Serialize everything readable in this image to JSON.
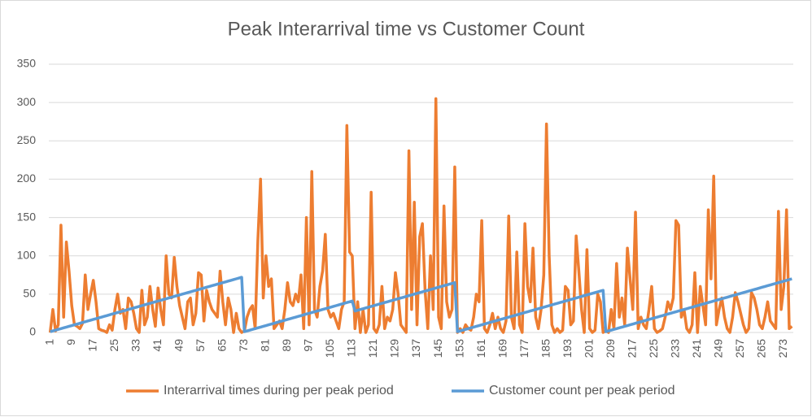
{
  "chart_data": {
    "type": "line",
    "title": "Peak Interarrival time vs Customer Count",
    "categories": [
      "1",
      null,
      null,
      null,
      null,
      null,
      null,
      null,
      "9",
      null,
      null,
      null,
      null,
      null,
      null,
      null,
      "17",
      null,
      null,
      null,
      null,
      null,
      null,
      null,
      "25",
      null,
      null,
      null,
      null,
      null,
      null,
      null,
      "33",
      null,
      null,
      null,
      null,
      null,
      null,
      null,
      "41",
      null,
      null,
      null,
      null,
      null,
      null,
      null,
      "49",
      null,
      null,
      null,
      null,
      null,
      null,
      null,
      "57",
      null,
      null,
      null,
      null,
      null,
      null,
      null,
      "65",
      null,
      null,
      null,
      null,
      null,
      null,
      null,
      "73",
      null,
      null,
      null,
      null,
      null,
      null,
      null,
      "81",
      null,
      null,
      null,
      null,
      null,
      null,
      null,
      "89",
      null,
      null,
      null,
      null,
      null,
      null,
      null,
      "97",
      null,
      null,
      null,
      null,
      null,
      null,
      null,
      "105",
      null,
      null,
      null,
      null,
      null,
      null,
      null,
      "113",
      null,
      null,
      null,
      null,
      null,
      null,
      null,
      "121",
      null,
      null,
      null,
      null,
      null,
      null,
      null,
      "129",
      null,
      null,
      null,
      null,
      null,
      null,
      null,
      "137",
      null,
      null,
      null,
      null,
      null,
      null,
      null,
      "145",
      null,
      null,
      null,
      null,
      null,
      null,
      null,
      "153",
      null,
      null,
      null,
      null,
      null,
      null,
      null,
      "161",
      null,
      null,
      null,
      null,
      null,
      null,
      null,
      "169",
      null,
      null,
      null,
      null,
      null,
      null,
      null,
      "177",
      null,
      null,
      null,
      null,
      null,
      null,
      null,
      "185",
      null,
      null,
      null,
      null,
      null,
      null,
      null,
      "193",
      null,
      null,
      null,
      null,
      null,
      null,
      null,
      "201",
      null,
      null,
      null,
      null,
      null,
      null,
      null,
      "209",
      null,
      null,
      null,
      null,
      null,
      null,
      null,
      "217",
      null,
      null,
      null,
      null,
      null,
      null,
      null,
      "225",
      null,
      null,
      null,
      null,
      null,
      null,
      null,
      "233",
      null,
      null,
      null,
      null,
      null,
      null,
      null,
      "241",
      null,
      null,
      null,
      null,
      null,
      null,
      null,
      "249",
      null,
      null,
      null,
      null,
      null,
      null,
      null,
      "257",
      null,
      null,
      null,
      null,
      null,
      null,
      null,
      "265",
      null,
      null,
      null,
      null,
      null,
      null,
      null,
      "273",
      null,
      null,
      null
    ],
    "series": [
      {
        "name": "Interarrival times during per peak period",
        "color": "#ed7d31",
        "values": [
          0,
          30,
          2,
          10,
          140,
          20,
          118,
          80,
          35,
          10,
          8,
          5,
          12,
          75,
          30,
          50,
          68,
          40,
          5,
          3,
          2,
          0,
          10,
          3,
          30,
          50,
          25,
          30,
          5,
          45,
          40,
          25,
          5,
          0,
          55,
          10,
          20,
          60,
          30,
          8,
          58,
          30,
          10,
          100,
          50,
          45,
          98,
          60,
          35,
          20,
          5,
          40,
          45,
          10,
          25,
          78,
          75,
          15,
          55,
          40,
          30,
          25,
          20,
          80,
          40,
          10,
          45,
          30,
          0,
          25,
          5,
          0,
          2,
          20,
          30,
          35,
          5,
          120,
          200,
          45,
          100,
          60,
          70,
          5,
          10,
          15,
          5,
          30,
          65,
          40,
          35,
          50,
          40,
          75,
          5,
          150,
          10,
          210,
          30,
          20,
          60,
          80,
          128,
          30,
          20,
          25,
          15,
          5,
          30,
          40,
          270,
          105,
          100,
          5,
          40,
          0,
          30,
          0,
          10,
          183,
          5,
          0,
          10,
          60,
          5,
          20,
          15,
          30,
          78,
          50,
          10,
          5,
          0,
          237,
          30,
          170,
          10,
          125,
          142,
          55,
          5,
          100,
          30,
          305,
          20,
          5,
          165,
          40,
          20,
          30,
          216,
          0,
          5,
          0,
          10,
          5,
          3,
          20,
          50,
          40,
          146,
          5,
          0,
          10,
          25,
          5,
          20,
          5,
          0,
          15,
          152,
          20,
          5,
          105,
          10,
          0,
          142,
          60,
          40,
          110,
          20,
          5,
          30,
          75,
          272,
          100,
          10,
          0,
          5,
          0,
          3,
          60,
          55,
          10,
          15,
          126,
          80,
          30,
          0,
          108,
          5,
          0,
          3,
          50,
          40,
          0,
          2,
          0,
          30,
          5,
          90,
          20,
          45,
          10,
          110,
          70,
          30,
          157,
          5,
          20,
          10,
          5,
          30,
          60,
          5,
          0,
          2,
          5,
          20,
          40,
          30,
          45,
          146,
          140,
          20,
          30,
          5,
          0,
          10,
          78,
          0,
          60,
          35,
          10,
          160,
          70,
          204,
          10,
          30,
          45,
          20,
          5,
          0,
          20,
          52,
          40,
          25,
          10,
          0,
          5,
          52,
          45,
          30,
          10,
          5,
          20,
          40,
          15,
          10,
          5,
          158,
          30,
          60,
          160,
          5,
          8
        ]
      },
      {
        "name": "Customer count per peak period",
        "color": "#5b9bd5",
        "values": [
          1,
          2,
          3,
          4,
          5,
          6,
          7,
          8,
          9,
          10,
          11,
          12,
          13,
          14,
          15,
          16,
          17,
          18,
          19,
          20,
          21,
          22,
          23,
          24,
          25,
          26,
          27,
          28,
          29,
          30,
          31,
          32,
          33,
          34,
          35,
          36,
          37,
          38,
          39,
          40,
          41,
          42,
          43,
          44,
          45,
          46,
          47,
          48,
          49,
          50,
          51,
          52,
          53,
          54,
          55,
          56,
          57,
          58,
          59,
          60,
          61,
          62,
          63,
          64,
          65,
          66,
          67,
          68,
          69,
          70,
          71,
          72,
          1,
          2,
          3,
          4,
          5,
          6,
          7,
          8,
          9,
          10,
          11,
          12,
          13,
          14,
          15,
          16,
          17,
          18,
          19,
          20,
          21,
          22,
          23,
          24,
          25,
          26,
          27,
          28,
          29,
          30,
          31,
          32,
          33,
          34,
          35,
          36,
          37,
          38,
          39,
          40,
          41,
          28,
          29,
          30,
          31,
          32,
          33,
          34,
          35,
          36,
          37,
          38,
          39,
          40,
          41,
          42,
          43,
          44,
          45,
          46,
          47,
          48,
          49,
          50,
          51,
          52,
          53,
          54,
          55,
          56,
          57,
          58,
          59,
          60,
          61,
          62,
          63,
          64,
          65,
          1,
          2,
          3,
          4,
          5,
          6,
          7,
          8,
          9,
          10,
          11,
          12,
          13,
          14,
          15,
          16,
          17,
          18,
          19,
          20,
          21,
          22,
          23,
          24,
          25,
          26,
          27,
          28,
          29,
          30,
          31,
          32,
          33,
          34,
          35,
          36,
          37,
          38,
          39,
          40,
          41,
          42,
          43,
          44,
          45,
          46,
          47,
          48,
          49,
          50,
          51,
          52,
          53,
          54,
          55,
          1,
          2,
          3,
          4,
          5,
          6,
          7,
          8,
          9,
          10,
          11,
          12,
          13,
          14,
          15,
          16,
          17,
          18,
          19,
          20,
          21,
          22,
          23,
          24,
          25,
          26,
          27,
          28,
          29,
          30,
          31,
          32,
          33,
          34,
          35,
          36,
          37,
          38,
          39,
          40,
          41,
          42,
          43,
          44,
          45,
          46,
          47,
          48,
          49,
          50,
          51,
          52,
          53,
          54,
          55,
          56,
          57,
          58,
          59,
          60,
          61,
          62,
          63,
          64,
          65,
          66,
          67,
          68,
          69,
          70
        ]
      }
    ],
    "ylim": [
      0,
      350
    ],
    "yticks": [
      0,
      50,
      100,
      150,
      200,
      250,
      300,
      350
    ],
    "grid": true,
    "legend": "bottom"
  }
}
